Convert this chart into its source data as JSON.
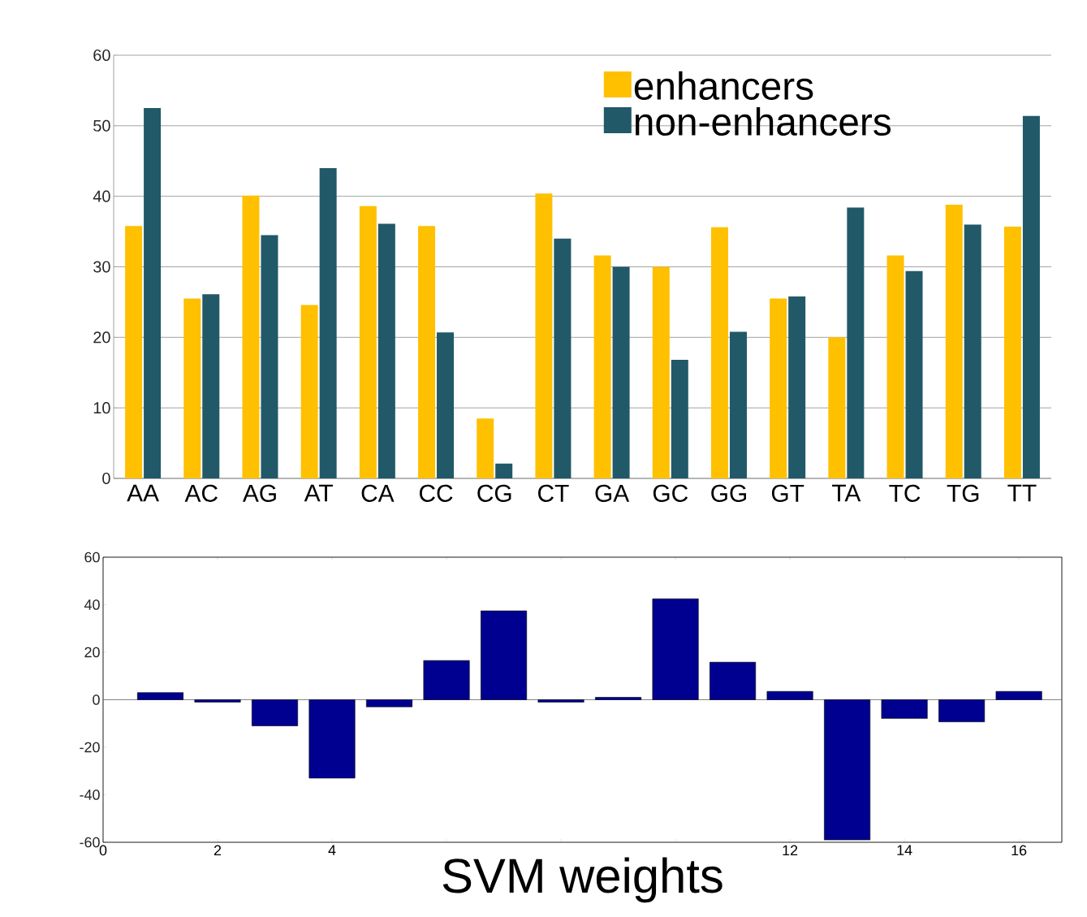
{
  "chart_data": [
    {
      "type": "bar",
      "categories": [
        "AA",
        "AC",
        "AG",
        "AT",
        "CA",
        "CC",
        "CG",
        "CT",
        "GA",
        "GC",
        "GG",
        "GT",
        "TA",
        "TC",
        "TG",
        "TT"
      ],
      "series": [
        {
          "name": "enhancers",
          "color": "#ffc000",
          "values": [
            35.8,
            25.5,
            40.1,
            24.6,
            38.6,
            35.8,
            8.5,
            40.4,
            31.6,
            30,
            35.6,
            25.5,
            20,
            31.6,
            38.8,
            35.7
          ]
        },
        {
          "name": "non-enhancers",
          "color": "#215968",
          "values": [
            52.5,
            26.1,
            34.5,
            44,
            36.1,
            20.7,
            2.1,
            34,
            30,
            16.8,
            20.8,
            25.8,
            38.4,
            29.4,
            36,
            51.4
          ]
        }
      ],
      "ylim": [
        0,
        60
      ],
      "yticks": [
        0,
        10,
        20,
        30,
        40,
        50,
        60
      ],
      "grid": "y",
      "legend": "top right"
    },
    {
      "type": "bar",
      "title": "SVM weights",
      "x": [
        1,
        2,
        3,
        4,
        5,
        6,
        7,
        8,
        9,
        10,
        11,
        12,
        13,
        14,
        15,
        16
      ],
      "values": [
        3,
        -1,
        -11,
        -33,
        -3,
        16.5,
        37.4,
        -1,
        1,
        42.5,
        15.8,
        3.5,
        -59,
        -7.9,
        -9.3,
        3.5
      ],
      "color": "#000090",
      "xlim": [
        0,
        16.75
      ],
      "ylim": [
        -60,
        60
      ],
      "xticks": [
        0,
        2,
        4,
        {
          "value": 6,
          "label": null
        },
        {
          "value": 8,
          "label": null
        },
        {
          "value": 10,
          "label": null
        },
        12,
        14,
        16
      ],
      "yticks": [
        -60,
        -40,
        -20,
        0,
        20,
        40,
        60
      ]
    }
  ]
}
